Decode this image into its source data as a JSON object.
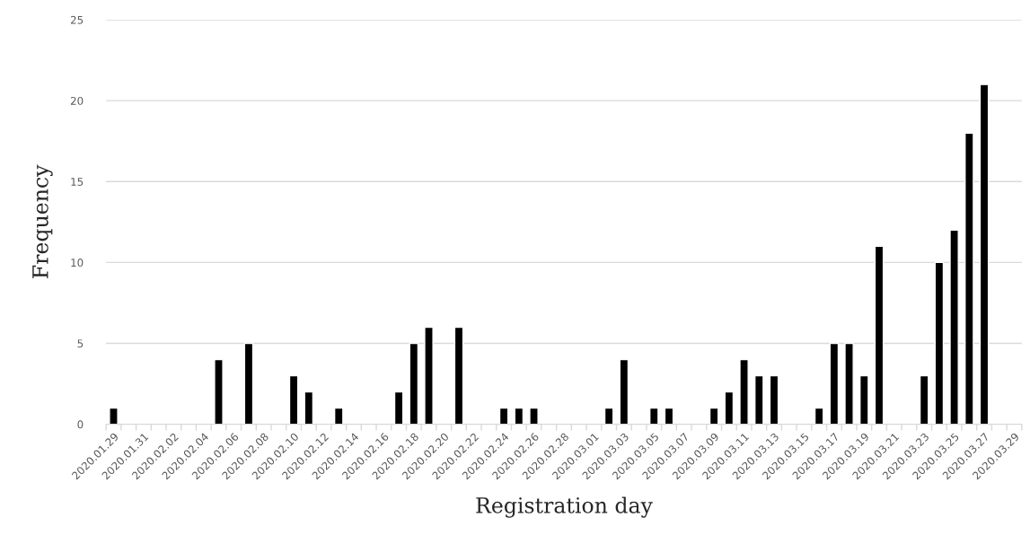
{
  "chart_data": {
    "type": "bar",
    "xlabel": "Registration day",
    "ylabel": "Frequency",
    "categories": [
      "2020.01.29",
      null,
      "2020.01.31",
      null,
      "2020.02.02",
      null,
      "2020.02.04",
      null,
      "2020.02.06",
      null,
      "2020.02.08",
      null,
      "2020.02.10",
      null,
      "2020.02.12",
      null,
      "2020.02.14",
      null,
      "2020.02.16",
      null,
      "2020.02.18",
      null,
      "2020.02.20",
      null,
      "2020.02.22",
      null,
      "2020.02.24",
      null,
      "2020.02.26",
      null,
      "2020.02.28",
      null,
      "2020.03.01",
      null,
      "2020.03.03",
      null,
      "2020.03.05",
      null,
      "2020.03.07",
      null,
      "2020.03.09",
      null,
      "2020.03.11",
      null,
      "2020.03.13",
      null,
      "2020.03.15",
      null,
      "2020.03.17",
      null,
      "2020.03.19",
      null,
      "2020.03.21",
      null,
      "2020.03.23",
      null,
      "2020.03.25",
      null,
      "2020.03.27",
      null,
      "2020.03.29"
    ],
    "values": [
      1,
      null,
      null,
      null,
      null,
      null,
      null,
      4,
      null,
      5,
      null,
      null,
      3,
      2,
      null,
      1,
      null,
      null,
      null,
      2,
      5,
      6,
      null,
      6,
      null,
      null,
      1,
      1,
      1,
      null,
      null,
      null,
      null,
      1,
      4,
      null,
      1,
      1,
      null,
      null,
      1,
      2,
      4,
      3,
      3,
      null,
      null,
      1,
      5,
      5,
      3,
      11,
      null,
      null,
      3,
      10,
      12,
      18,
      21,
      null,
      null
    ],
    "color": "#000000",
    "ylim": [
      0,
      25
    ],
    "yticks": [
      0,
      5,
      10,
      15,
      20,
      25
    ],
    "grid": "y",
    "legend": false
  }
}
